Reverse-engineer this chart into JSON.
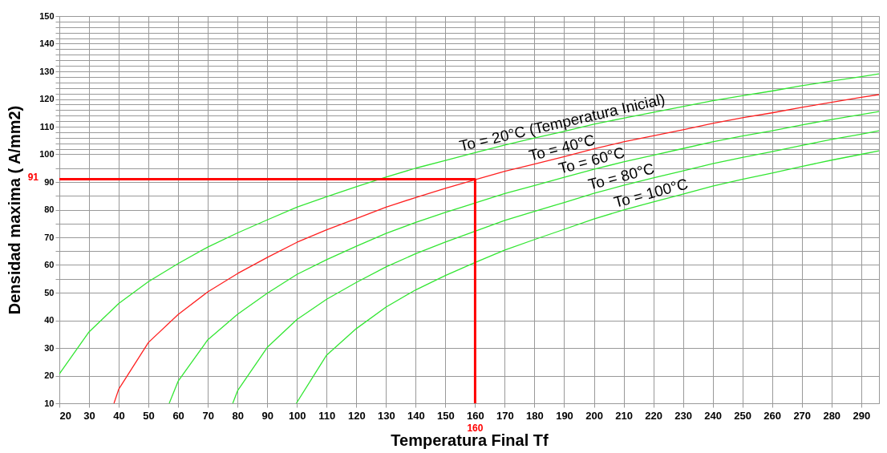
{
  "chart_data": {
    "type": "line",
    "xlabel": "Temperatura Final Tf",
    "ylabel": "Densidad maxima ( A/mm2)",
    "xlim": [
      20,
      296
    ],
    "ylim": [
      10,
      150
    ],
    "xticks": [
      20,
      30,
      40,
      50,
      60,
      70,
      80,
      90,
      100,
      110,
      120,
      130,
      140,
      150,
      160,
      170,
      180,
      190,
      200,
      210,
      220,
      230,
      240,
      250,
      260,
      270,
      280,
      290
    ],
    "yticks": [
      10,
      20,
      30,
      40,
      50,
      {
        "value": 55,
        "label": null
      },
      60,
      {
        "value": 65,
        "label": null
      },
      70,
      {
        "value": 75,
        "label": null
      },
      80,
      {
        "value": 85,
        "label": null
      },
      90,
      {
        "value": 95,
        "label": null
      },
      100,
      {
        "value": 102,
        "label": null
      },
      {
        "value": 104,
        "label": null
      },
      {
        "value": 106,
        "label": null
      },
      {
        "value": 108,
        "label": null
      },
      110,
      {
        "value": 112,
        "label": null
      },
      {
        "value": 114,
        "label": null
      },
      {
        "value": 116,
        "label": null
      },
      {
        "value": 118,
        "label": null
      },
      120,
      {
        "value": 122,
        "label": null
      },
      {
        "value": 124,
        "label": null
      },
      {
        "value": 126,
        "label": null
      },
      {
        "value": 128,
        "label": null
      },
      130,
      {
        "value": 132,
        "label": null
      },
      {
        "value": 134,
        "label": null
      },
      {
        "value": 136,
        "label": null
      },
      {
        "value": 138,
        "label": null
      },
      140,
      {
        "value": 142,
        "label": null
      },
      {
        "value": 144,
        "label": null
      },
      {
        "value": 146,
        "label": null
      },
      {
        "value": 148,
        "label": null
      },
      150
    ],
    "grid": true,
    "legend": false,
    "series": [
      {
        "name": "To = 20°C (Temperatura Inicial)",
        "color": "#33e633",
        "x": [
          20,
          30,
          40,
          50,
          60,
          70,
          80,
          90,
          100,
          110,
          120,
          130,
          140,
          150,
          160,
          170,
          180,
          190,
          200,
          210,
          220,
          230,
          240,
          250,
          260,
          270,
          280,
          290,
          296
        ],
        "values": [
          20.6,
          35.8,
          46.1,
          54.0,
          60.5,
          66.5,
          71.6,
          76.3,
          80.9,
          84.7,
          88.3,
          91.8,
          95.0,
          97.8,
          100.6,
          103.4,
          105.9,
          108.3,
          110.9,
          113.1,
          115.2,
          117.3,
          119.4,
          121.2,
          122.9,
          124.8,
          126.5,
          128.1,
          129.1
        ]
      },
      {
        "name": "To = 40°C",
        "color": "#ff2020",
        "x": [
          38.4,
          40,
          50,
          60,
          70,
          80,
          90,
          100,
          110,
          120,
          130,
          140,
          150,
          160,
          170,
          180,
          190,
          200,
          210,
          220,
          230,
          240,
          250,
          260,
          270,
          280,
          290,
          296
        ],
        "values": [
          10,
          15.1,
          32.0,
          42.1,
          50.3,
          56.9,
          62.7,
          68.2,
          72.7,
          76.8,
          80.9,
          84.4,
          87.7,
          90.8,
          93.9,
          96.5,
          99.2,
          102.0,
          104.5,
          106.7,
          108.9,
          111.2,
          113.2,
          115.0,
          117.0,
          118.8,
          120.6,
          121.6
        ]
      },
      {
        "name": "To = 60°C",
        "color": "#33e633",
        "x": [
          57,
          60,
          70,
          80,
          90,
          100,
          110,
          120,
          130,
          140,
          150,
          160,
          170,
          180,
          190,
          200,
          210,
          220,
          230,
          240,
          250,
          260,
          270,
          280,
          290,
          296
        ],
        "values": [
          10,
          18.0,
          33.0,
          42.2,
          49.8,
          56.6,
          61.9,
          66.8,
          71.4,
          75.4,
          79.0,
          82.4,
          85.8,
          88.7,
          91.7,
          94.6,
          97.3,
          99.7,
          102.1,
          104.5,
          106.6,
          108.5,
          110.6,
          112.6,
          114.4,
          115.5
        ]
      },
      {
        "name": "To = 80°C",
        "color": "#33e633",
        "x": [
          78.4,
          80,
          90,
          100,
          110,
          120,
          130,
          140,
          150,
          160,
          170,
          180,
          190,
          200,
          210,
          220,
          230,
          240,
          250,
          260,
          270,
          280,
          290,
          296
        ],
        "values": [
          10,
          14.5,
          30.2,
          40.3,
          47.6,
          53.7,
          59.3,
          64.1,
          68.3,
          72.2,
          76.1,
          79.4,
          82.6,
          85.9,
          88.8,
          91.5,
          94.0,
          96.6,
          98.9,
          101.0,
          103.2,
          105.4,
          107.3,
          108.5
        ]
      },
      {
        "name": "To = 100°C",
        "color": "#33e633",
        "x": [
          99.8,
          110,
          120,
          130,
          140,
          150,
          160,
          170,
          180,
          190,
          200,
          210,
          220,
          230,
          240,
          250,
          260,
          270,
          280,
          290,
          296
        ],
        "values": [
          10,
          27.4,
          37.0,
          44.8,
          51.0,
          56.2,
          60.9,
          65.4,
          69.2,
          72.9,
          76.6,
          79.9,
          82.8,
          85.6,
          88.5,
          91.0,
          93.2,
          95.6,
          97.9,
          100.0,
          101.3
        ]
      },
      {
        "type": "line",
        "color": "#ff0000",
        "x": [
          20,
          160,
          160
        ],
        "values": [
          91,
          91,
          10
        ]
      }
    ],
    "annotations": [
      {
        "text": "91",
        "x": 20,
        "y": 91
      },
      {
        "text": "160",
        "x": 160,
        "y": 10
      }
    ]
  }
}
